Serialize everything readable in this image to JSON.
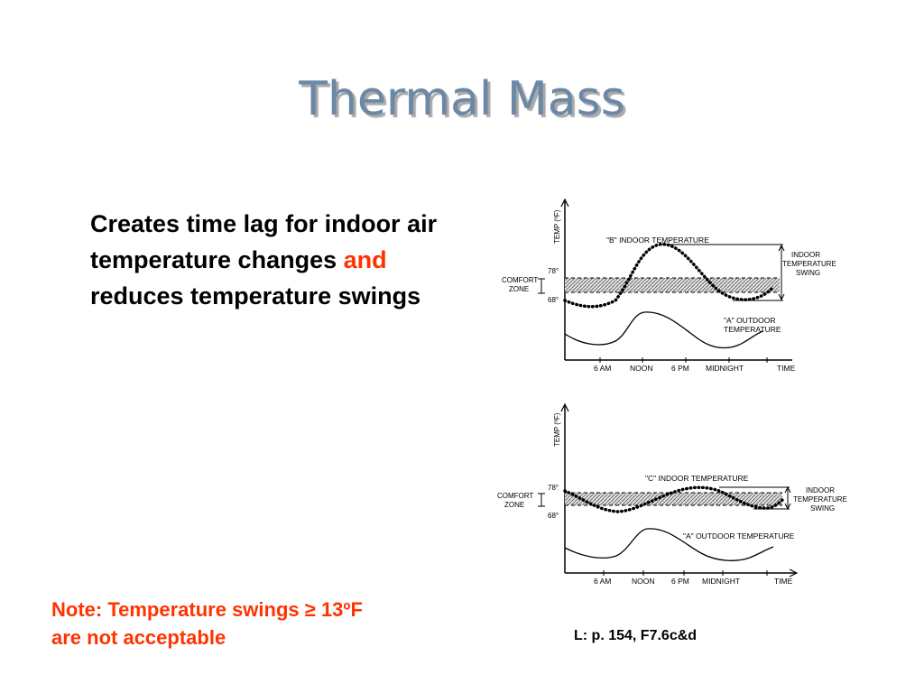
{
  "slide": {
    "title": "Thermal Mass",
    "bullet": {
      "part1": "Creates time lag for indoor air temperature changes ",
      "highlight": "and",
      "part2": " reduces temperature swings"
    },
    "note": {
      "line1": "Note: Temperature swings ≥ 13ºF",
      "line2": "are not acceptable"
    },
    "reference": "L: p. 154, F7.6c&d"
  },
  "figures": [
    {
      "y_axis_label": "TEMP (ºF)",
      "tick_high": "78°",
      "tick_low": "68°",
      "comfort_label_1": "COMFORT",
      "comfort_label_2": "ZONE",
      "indoor_label": "\"B\" INDOOR TEMPERATURE",
      "outdoor_label_1": "\"A\" OUTDOOR",
      "outdoor_label_2": "TEMPERATURE",
      "swing_label_1": "INDOOR",
      "swing_label_2": "TEMPERATURE",
      "swing_label_3": "SWING",
      "x_ticks": [
        "6 AM",
        "NOON",
        "6 PM",
        "MIDNIGHT",
        "TIME"
      ]
    },
    {
      "y_axis_label": "TEMP (ºF)",
      "tick_high": "78°",
      "tick_low": "68°",
      "comfort_label_1": "COMFORT",
      "comfort_label_2": "ZONE",
      "indoor_label": "\"C\" INDOOR TEMPERATURE",
      "outdoor_label_1": "\"A\" OUTDOOR TEMPERATURE",
      "outdoor_label_2": "",
      "swing_label_1": "INDOOR",
      "swing_label_2": "TEMPERATURE",
      "swing_label_3": "SWING",
      "x_ticks": [
        "6 AM",
        "NOON",
        "6 PM",
        "MIDNIGHT",
        "TIME"
      ]
    }
  ],
  "colors": {
    "title": "#6b88a6",
    "highlight": "#ff3300",
    "note": "#ff3300"
  }
}
